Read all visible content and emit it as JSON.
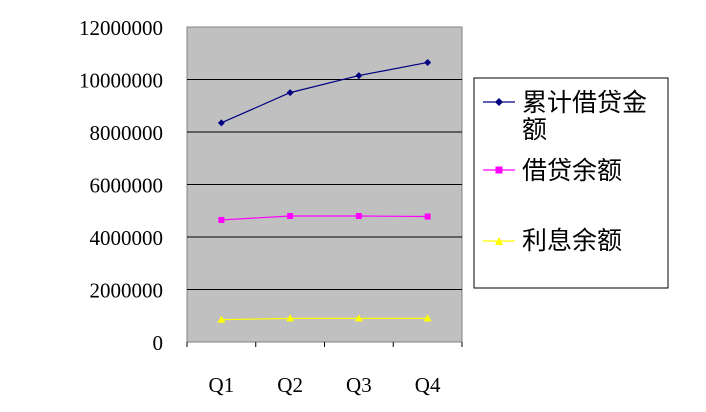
{
  "chart_data": {
    "type": "line",
    "title": "",
    "xlabel": "",
    "ylabel": "",
    "categories": [
      "Q1",
      "Q2",
      "Q3",
      "Q4"
    ],
    "ylim": [
      0,
      12000000
    ],
    "yticks": [
      0,
      2000000,
      4000000,
      6000000,
      8000000,
      10000000,
      12000000
    ],
    "grid": true,
    "plot_background": "#c0c0c0",
    "legend_position": "right",
    "series": [
      {
        "name": "累计借贷金额",
        "values": [
          8350000,
          9500000,
          10150000,
          10650000
        ],
        "color": "#000080",
        "marker": "diamond"
      },
      {
        "name": "借贷余额",
        "values": [
          4650000,
          4800000,
          4800000,
          4780000
        ],
        "color": "#ff00ff",
        "marker": "square"
      },
      {
        "name": "利息余额",
        "values": [
          850000,
          900000,
          900000,
          900000
        ],
        "color": "#ffff00",
        "marker": "triangle"
      }
    ]
  }
}
